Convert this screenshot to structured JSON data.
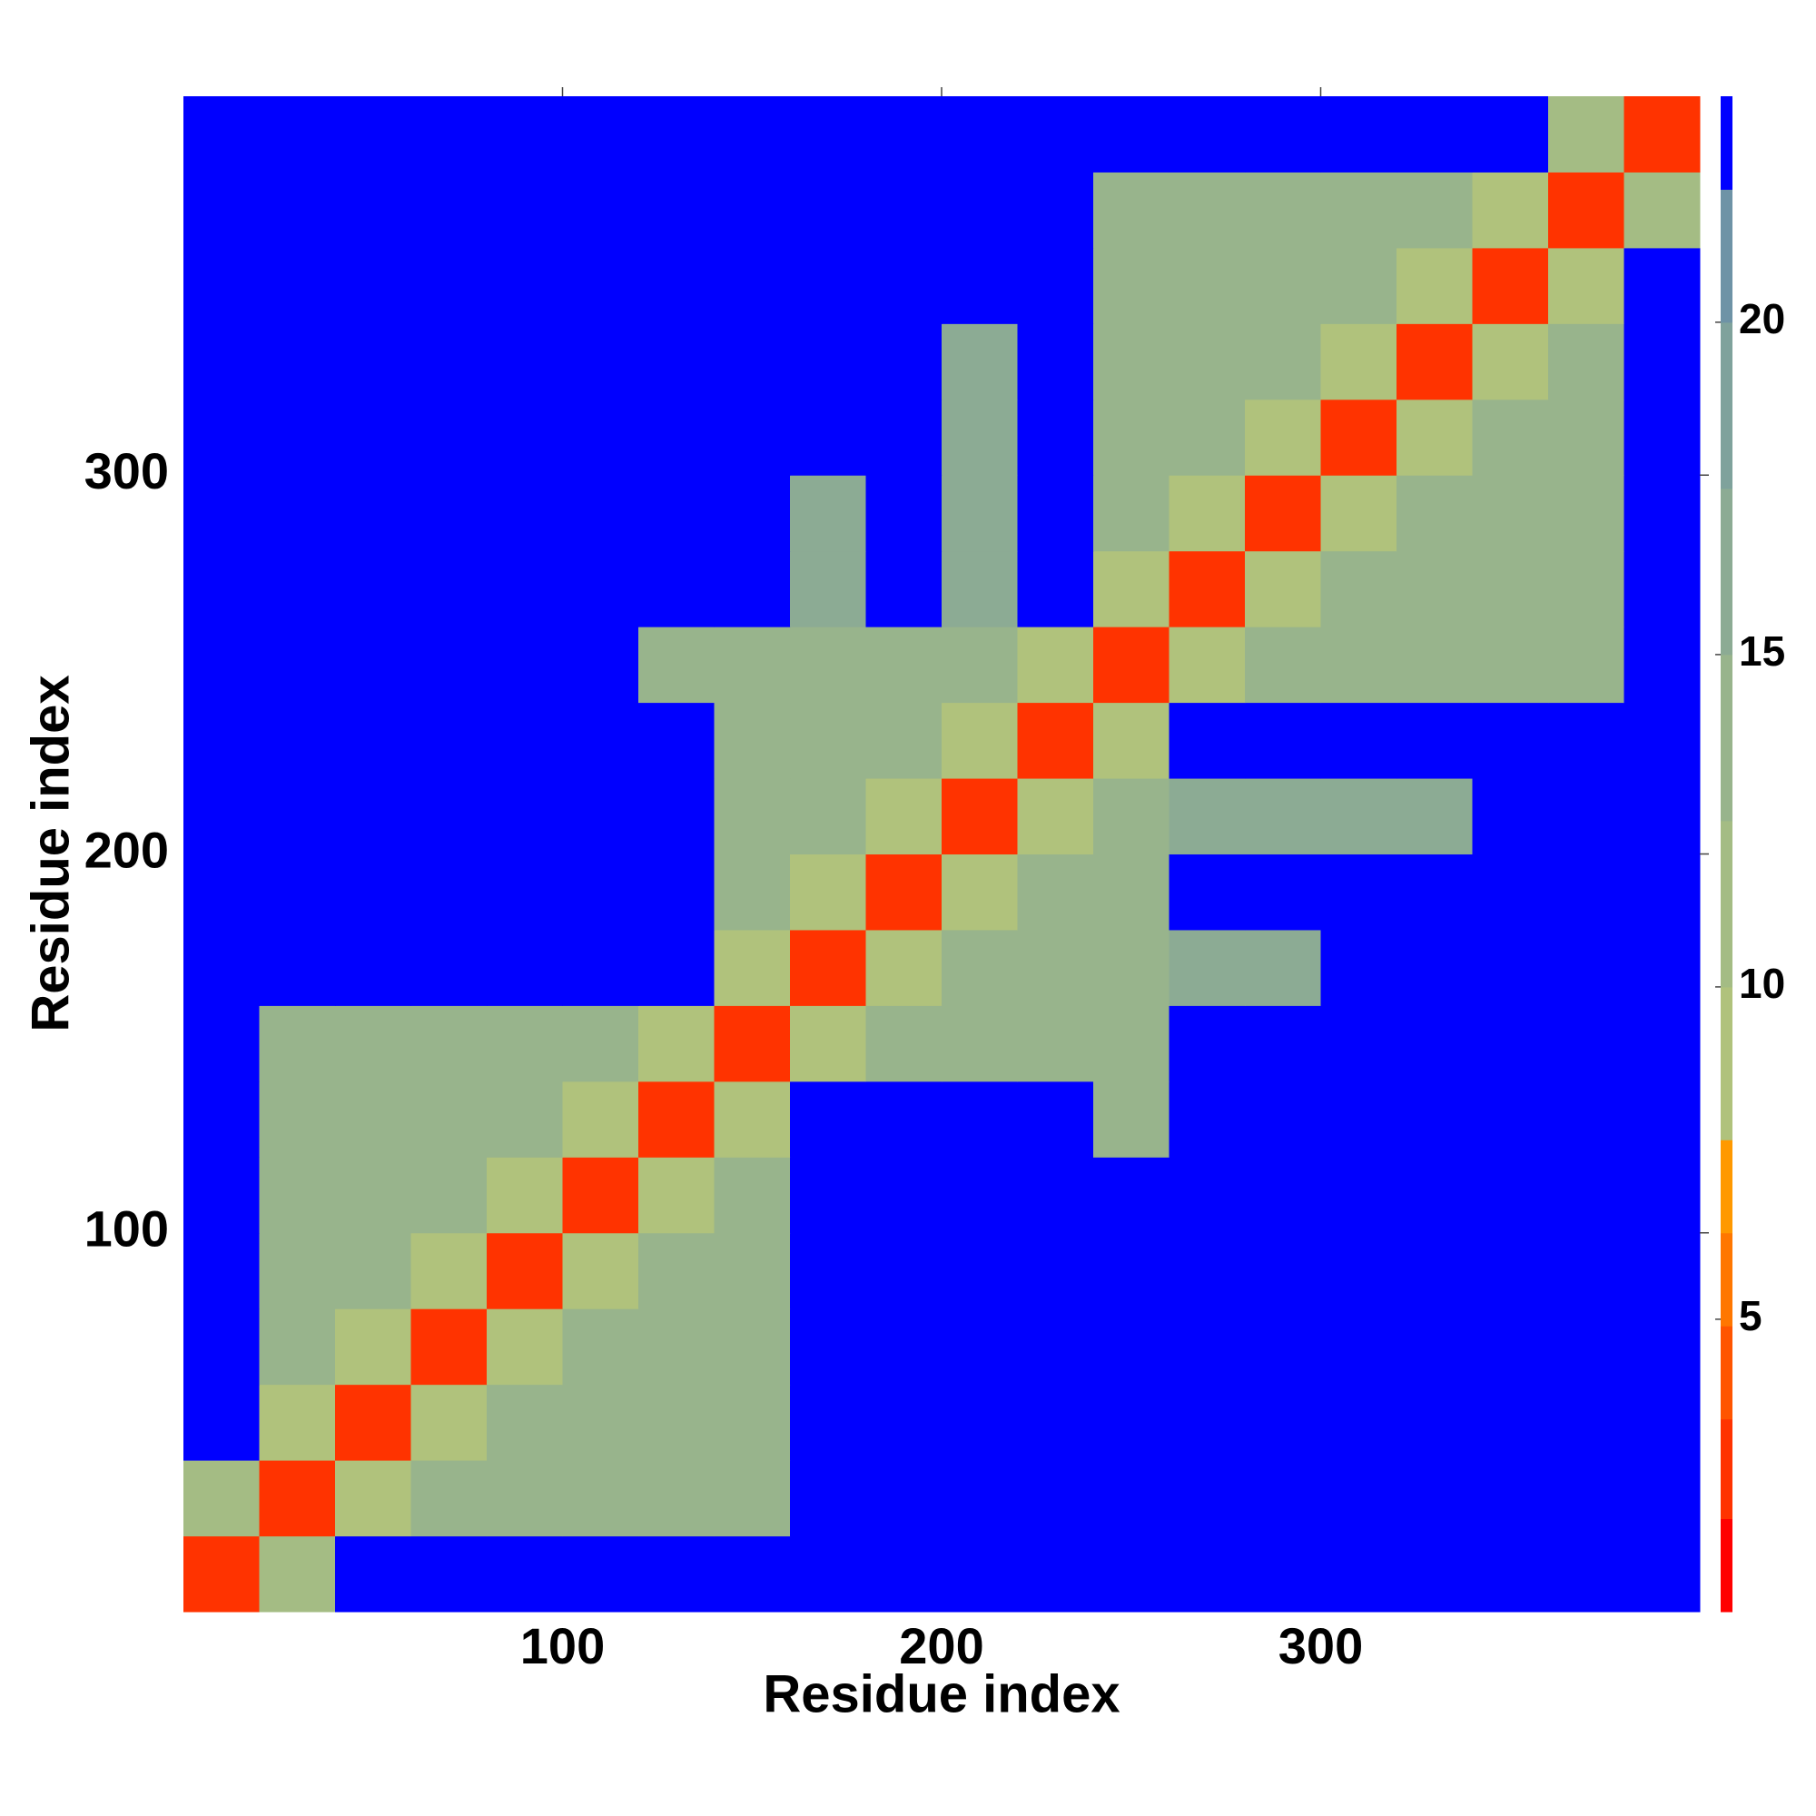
{
  "chart_data": {
    "type": "heatmap",
    "xlabel": "Residue index",
    "ylabel": "Residue index",
    "xlim": [
      0,
      400
    ],
    "ylim": [
      0,
      400
    ],
    "xticks": [
      100,
      200,
      300
    ],
    "yticks": [
      100,
      200,
      300
    ],
    "xbins": [
      0,
      20,
      40,
      60,
      80,
      100,
      120,
      140,
      160,
      180,
      200,
      220,
      240,
      260,
      280,
      300,
      320,
      340,
      360,
      380,
      400
    ],
    "ybins": [
      0,
      20,
      40,
      60,
      80,
      100,
      120,
      140,
      160,
      180,
      200,
      220,
      240,
      260,
      280,
      300,
      320,
      340,
      360,
      380,
      400
    ],
    "z": [
      [
        3,
        11,
        23,
        23,
        23,
        23,
        23,
        23,
        23,
        23,
        23,
        23,
        23,
        23,
        23,
        23,
        23,
        23,
        23,
        23
      ],
      [
        11,
        3,
        9,
        13,
        13,
        13,
        13,
        13,
        23,
        23,
        23,
        23,
        23,
        23,
        23,
        23,
        23,
        23,
        23,
        23
      ],
      [
        23,
        9,
        3,
        9,
        13,
        13,
        13,
        13,
        23,
        23,
        23,
        23,
        23,
        23,
        23,
        23,
        23,
        23,
        23,
        23
      ],
      [
        23,
        13,
        9,
        3,
        9,
        13,
        13,
        13,
        23,
        23,
        23,
        23,
        23,
        23,
        23,
        23,
        23,
        23,
        23,
        23
      ],
      [
        23,
        13,
        13,
        9,
        3,
        9,
        13,
        13,
        23,
        23,
        23,
        23,
        23,
        23,
        23,
        23,
        23,
        23,
        23,
        23
      ],
      [
        23,
        13,
        13,
        13,
        9,
        3,
        9,
        13,
        23,
        23,
        23,
        23,
        23,
        23,
        23,
        23,
        23,
        23,
        23,
        23
      ],
      [
        23,
        13,
        13,
        13,
        13,
        9,
        3,
        9,
        23,
        23,
        23,
        23,
        14,
        23,
        23,
        23,
        23,
        23,
        23,
        23
      ],
      [
        23,
        13,
        13,
        13,
        13,
        13,
        9,
        3,
        9,
        13,
        13,
        13,
        13,
        23,
        23,
        23,
        23,
        23,
        23,
        23
      ],
      [
        23,
        23,
        23,
        23,
        23,
        23,
        23,
        9,
        3,
        9,
        13,
        13,
        13,
        16,
        16,
        23,
        23,
        23,
        23,
        23
      ],
      [
        23,
        23,
        23,
        23,
        23,
        23,
        23,
        13,
        9,
        3,
        9,
        13,
        13,
        23,
        23,
        23,
        23,
        23,
        23,
        23
      ],
      [
        23,
        23,
        23,
        23,
        23,
        23,
        23,
        13,
        13,
        9,
        3,
        9,
        13,
        16,
        16,
        16,
        16,
        23,
        23,
        23
      ],
      [
        23,
        23,
        23,
        23,
        23,
        23,
        23,
        13,
        13,
        13,
        9,
        3,
        9,
        23,
        23,
        23,
        23,
        23,
        23,
        23
      ],
      [
        23,
        23,
        23,
        23,
        23,
        23,
        14,
        13,
        13,
        13,
        13,
        9,
        3,
        9,
        13,
        13,
        13,
        13,
        13,
        23
      ],
      [
        23,
        23,
        23,
        23,
        23,
        23,
        23,
        23,
        16,
        23,
        16,
        23,
        9,
        3,
        9,
        13,
        13,
        13,
        13,
        23
      ],
      [
        23,
        23,
        23,
        23,
        23,
        23,
        23,
        23,
        16,
        23,
        16,
        23,
        13,
        9,
        3,
        9,
        13,
        13,
        13,
        23
      ],
      [
        23,
        23,
        23,
        23,
        23,
        23,
        23,
        23,
        23,
        23,
        16,
        23,
        13,
        13,
        9,
        3,
        9,
        13,
        13,
        23
      ],
      [
        23,
        23,
        23,
        23,
        23,
        23,
        23,
        23,
        23,
        23,
        16,
        23,
        13,
        13,
        13,
        9,
        3,
        9,
        13,
        23
      ],
      [
        23,
        23,
        23,
        23,
        23,
        23,
        23,
        23,
        23,
        23,
        23,
        23,
        13,
        13,
        13,
        13,
        9,
        3,
        9,
        23
      ],
      [
        23,
        23,
        23,
        23,
        23,
        23,
        23,
        23,
        23,
        23,
        23,
        23,
        13,
        13,
        13,
        13,
        13,
        9,
        3,
        11
      ],
      [
        23,
        23,
        23,
        23,
        23,
        23,
        23,
        23,
        23,
        23,
        23,
        23,
        23,
        23,
        23,
        23,
        23,
        23,
        11,
        3
      ]
    ],
    "colorbar": {
      "levels": [
        0.6,
        2,
        3.5,
        4.9,
        6.3,
        7.7,
        10,
        12.5,
        15,
        17.5,
        20,
        22,
        23.4
      ],
      "colors": [
        "#ff0000",
        "#ff3300",
        "#ff5500",
        "#ff7700",
        "#ff9900",
        "#b0c27c",
        "#a4bc84",
        "#98b48c",
        "#8cab94",
        "#7fa29c",
        "#6e93a6",
        "#0000ff"
      ],
      "ticks": [
        5,
        10,
        15,
        20
      ]
    }
  }
}
